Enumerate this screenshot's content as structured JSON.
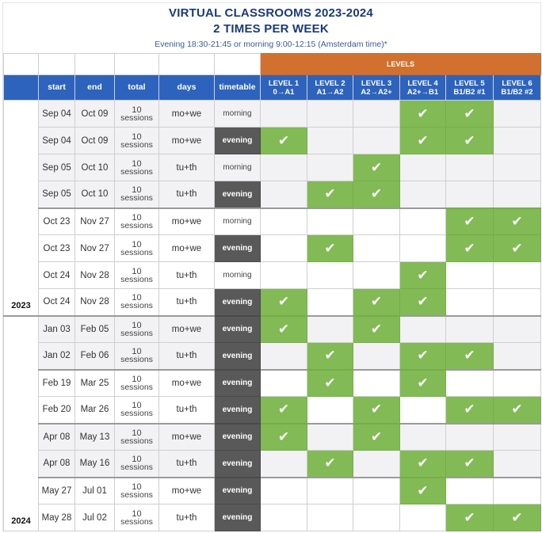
{
  "header": {
    "title_line1": "VIRTUAL CLASSROOMS 2023-2024",
    "title_line2": "2 TIMES PER WEEK",
    "subtitle": "Evening 18:30-21:45 or morning 9:00-12:15 (Amsterdam time)*"
  },
  "colors": {
    "title": "#1b3a78",
    "header_blue": "#2d63bd",
    "levels_orange": "#d2712f",
    "check_green": "#82ba55",
    "evening_dark": "#595959",
    "row_gray": "#f2f1f4"
  },
  "table": {
    "levels_band_label": "LEVELS",
    "columns": {
      "year": "",
      "start": "start",
      "end": "end",
      "total": "total",
      "days": "days",
      "timetable": "timetable"
    },
    "levels": [
      {
        "name": "LEVEL 1",
        "range": "0→A1"
      },
      {
        "name": "LEVEL 2",
        "range": "A1→A2"
      },
      {
        "name": "LEVEL 3",
        "range": "A2→A2+"
      },
      {
        "name": "LEVEL 4",
        "range": "A2+→B1"
      },
      {
        "name": "LEVEL 5",
        "range": "B1/B2 #1"
      },
      {
        "name": "LEVEL 6",
        "range": "B1/B2 #2"
      }
    ],
    "check_glyph": "✔",
    "years": [
      "2023",
      "2024"
    ],
    "rows": [
      {
        "year": "2023",
        "start": "Sep 04",
        "end": "Oct 09",
        "total_num": "10",
        "total_lbl": "sessions",
        "days": "mo+we",
        "timetable": "morning",
        "levels": [
          false,
          false,
          false,
          true,
          true,
          false
        ]
      },
      {
        "year": "2023",
        "start": "Sep 04",
        "end": "Oct 09",
        "total_num": "10",
        "total_lbl": "sessions",
        "days": "mo+we",
        "timetable": "evening",
        "levels": [
          true,
          false,
          false,
          true,
          true,
          false
        ]
      },
      {
        "year": "2023",
        "start": "Sep 05",
        "end": "Oct 10",
        "total_num": "10",
        "total_lbl": "sessions",
        "days": "tu+th",
        "timetable": "morning",
        "levels": [
          false,
          false,
          true,
          false,
          false,
          false
        ]
      },
      {
        "year": "2023",
        "start": "Sep 05",
        "end": "Oct 10",
        "total_num": "10",
        "total_lbl": "sessions",
        "days": "tu+th",
        "timetable": "evening",
        "levels": [
          false,
          true,
          true,
          false,
          false,
          false
        ]
      },
      {
        "year": "2023",
        "start": "Oct 23",
        "end": "Nov 27",
        "total_num": "10",
        "total_lbl": "sessions",
        "days": "mo+we",
        "timetable": "morning",
        "levels": [
          false,
          false,
          false,
          false,
          true,
          true
        ]
      },
      {
        "year": "2023",
        "start": "Oct 23",
        "end": "Nov 27",
        "total_num": "10",
        "total_lbl": "sessions",
        "days": "mo+we",
        "timetable": "evening",
        "levels": [
          false,
          true,
          false,
          false,
          true,
          true
        ]
      },
      {
        "year": "2023",
        "start": "Oct 24",
        "end": "Nov 28",
        "total_num": "10",
        "total_lbl": "sessions",
        "days": "tu+th",
        "timetable": "morning",
        "levels": [
          false,
          false,
          false,
          true,
          false,
          false
        ]
      },
      {
        "year": "2023",
        "start": "Oct 24",
        "end": "Nov 28",
        "total_num": "10",
        "total_lbl": "sessions",
        "days": "tu+th",
        "timetable": "evening",
        "levels": [
          true,
          false,
          true,
          true,
          false,
          false
        ]
      },
      {
        "year": "2024",
        "start": "Jan 03",
        "end": "Feb 05",
        "total_num": "10",
        "total_lbl": "sessions",
        "days": "mo+we",
        "timetable": "evening",
        "levels": [
          true,
          false,
          true,
          false,
          false,
          false
        ]
      },
      {
        "year": "2024",
        "start": "Jan 02",
        "end": "Feb 06",
        "total_num": "10",
        "total_lbl": "sessions",
        "days": "tu+th",
        "timetable": "evening",
        "levels": [
          false,
          true,
          false,
          true,
          true,
          false
        ]
      },
      {
        "year": "2024",
        "start": "Feb 19",
        "end": "Mar 25",
        "total_num": "10",
        "total_lbl": "sessions",
        "days": "mo+we",
        "timetable": "evening",
        "levels": [
          false,
          true,
          false,
          true,
          false,
          false
        ]
      },
      {
        "year": "2024",
        "start": "Feb 20",
        "end": "Mar 26",
        "total_num": "10",
        "total_lbl": "sessions",
        "days": "tu+th",
        "timetable": "evening",
        "levels": [
          true,
          false,
          true,
          false,
          true,
          true
        ]
      },
      {
        "year": "2024",
        "start": "Apr 08",
        "end": "May 13",
        "total_num": "10",
        "total_lbl": "sessions",
        "days": "mo+we",
        "timetable": "evening",
        "levels": [
          true,
          false,
          true,
          false,
          false,
          false
        ]
      },
      {
        "year": "2024",
        "start": "Apr 08",
        "end": "May 16",
        "total_num": "10",
        "total_lbl": "sessions",
        "days": "tu+th",
        "timetable": "evening",
        "levels": [
          false,
          true,
          false,
          true,
          true,
          false
        ]
      },
      {
        "year": "2024",
        "start": "May 27",
        "end": "Jul 01",
        "total_num": "10",
        "total_lbl": "sessions",
        "days": "mo+we",
        "timetable": "evening",
        "levels": [
          false,
          false,
          false,
          true,
          false,
          false
        ]
      },
      {
        "year": "2024",
        "start": "May 28",
        "end": "Jul 02",
        "total_num": "10",
        "total_lbl": "sessions",
        "days": "tu+th",
        "timetable": "evening",
        "levels": [
          false,
          false,
          false,
          false,
          true,
          true
        ]
      }
    ]
  }
}
